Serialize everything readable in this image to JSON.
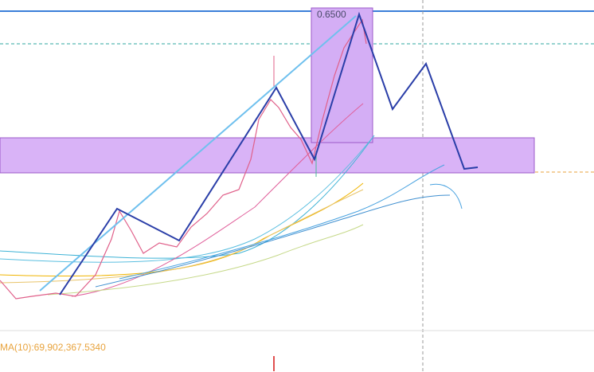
{
  "price_label": "0.6500",
  "indicator_label": "MA(10):69,902,367.5340"
}
